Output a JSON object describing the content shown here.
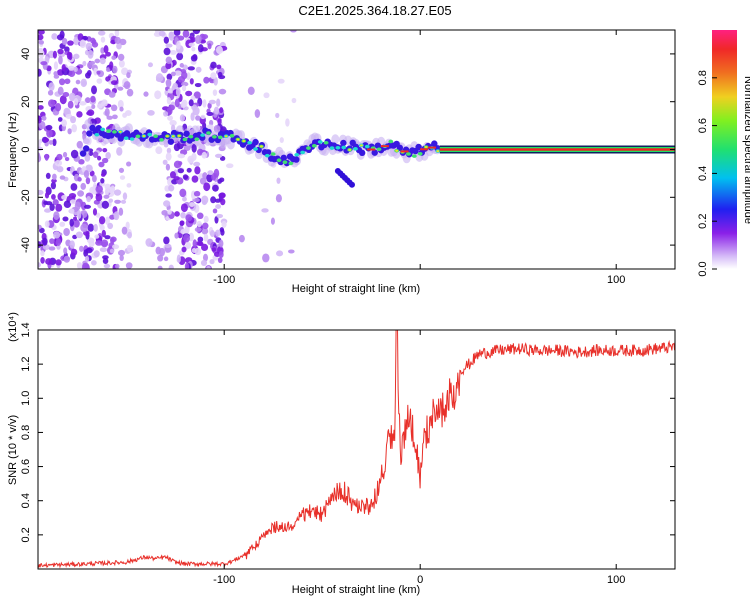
{
  "title": "C2E1.2025.364.18.27.E05",
  "chart_data": [
    {
      "type": "heatmap",
      "name": "spectrogram",
      "xlabel": "Height of straight line (km)",
      "ylabel": "Frequency (Hz)",
      "xlim": [
        -195,
        130
      ],
      "ylim": [
        -50,
        50
      ],
      "xticks": [
        -100,
        0,
        100
      ],
      "xtick_labels": [
        "-100",
        "",
        "100"
      ],
      "yticks": [
        -40,
        -20,
        0,
        20,
        40
      ],
      "ytick_labels": [
        "-40",
        "-20",
        "0",
        "20",
        "40"
      ],
      "colorbar": {
        "label": "Normalized spectral amplitude",
        "range": [
          0,
          1
        ],
        "ticks": [
          0.0,
          0.2,
          0.4,
          0.6,
          0.8
        ],
        "tick_labels": [
          "0.0",
          "0.2",
          "0.4",
          "0.6",
          "0.8"
        ],
        "colors": [
          "#ffffff",
          "#c8a0f0",
          "#7010e0",
          "#1818e8",
          "#00c8f0",
          "#20e060",
          "#c0f020",
          "#f0a020",
          "#f03030",
          "#ff2080"
        ]
      },
      "ridge": {
        "description_points_x": [
          -170,
          -150,
          -130,
          -110,
          -95,
          -85,
          -75,
          -65,
          -55,
          -45,
          -35,
          -25,
          -15,
          -5,
          5,
          10,
          130
        ],
        "description_points_y": [
          8,
          6,
          5,
          6,
          5,
          2,
          -3,
          -5,
          3,
          2,
          1,
          0,
          2,
          -2,
          1,
          0,
          0
        ]
      }
    },
    {
      "type": "line",
      "name": "snr",
      "xlabel": "Height of straight line (km)",
      "ylabel": "SNR (10 * v/v)",
      "y_multiplier": "(x10⁴)",
      "xlim": [
        -195,
        130
      ],
      "ylim": [
        0,
        1.4
      ],
      "xticks": [
        -100,
        0,
        100
      ],
      "xtick_labels": [
        "-100",
        "0",
        "100"
      ],
      "yticks": [
        0.2,
        0.4,
        0.6,
        0.8,
        1.0,
        1.2,
        1.4
      ],
      "ytick_labels": [
        "0.2",
        "0.4",
        "0.6",
        "0.8",
        "1.0",
        "1.2",
        "1.4"
      ],
      "color": "#e8302a",
      "series": [
        {
          "name": "SNR",
          "x": [
            -195,
            -170,
            -150,
            -140,
            -135,
            -130,
            -125,
            -120,
            -110,
            -100,
            -95,
            -90,
            -85,
            -80,
            -75,
            -70,
            -65,
            -60,
            -55,
            -50,
            -45,
            -40,
            -35,
            -30,
            -25,
            -20,
            -17,
            -15,
            -13,
            -12,
            -10,
            -8,
            -5,
            -2,
            0,
            2,
            5,
            10,
            15,
            20,
            25,
            30,
            40,
            50,
            60,
            70,
            80,
            90,
            100,
            110,
            120,
            130
          ],
          "y": [
            0.02,
            0.03,
            0.04,
            0.07,
            0.06,
            0.07,
            0.04,
            0.03,
            0.03,
            0.03,
            0.05,
            0.08,
            0.14,
            0.2,
            0.26,
            0.27,
            0.28,
            0.34,
            0.36,
            0.34,
            0.44,
            0.5,
            0.42,
            0.4,
            0.38,
            0.56,
            0.74,
            0.84,
            0.78,
            1.42,
            0.7,
            0.84,
            0.95,
            0.78,
            0.56,
            0.8,
            0.9,
            1.0,
            1.1,
            1.16,
            1.2,
            1.26,
            1.28,
            1.29,
            1.28,
            1.28,
            1.27,
            1.28,
            1.28,
            1.28,
            1.29,
            1.3
          ]
        }
      ]
    }
  ]
}
